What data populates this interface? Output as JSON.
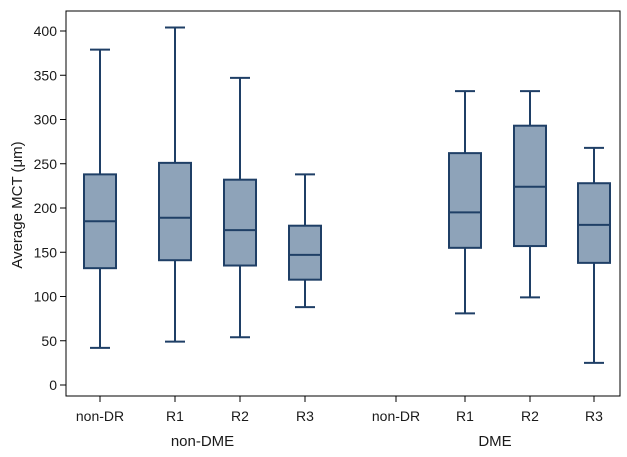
{
  "chart_data": {
    "type": "box",
    "ylabel": "Average MCT (μm)",
    "ylim": [
      0,
      400
    ],
    "yticks": [
      0,
      50,
      100,
      150,
      200,
      250,
      300,
      350,
      400
    ],
    "grid": false,
    "groups": [
      {
        "name": "non-DME",
        "categories": [
          "non-DR",
          "R1",
          "R2",
          "R3"
        ],
        "boxes": [
          {
            "min": 42,
            "q1": 132,
            "median": 185,
            "q3": 238,
            "max": 379
          },
          {
            "min": 49,
            "q1": 141,
            "median": 189,
            "q3": 251,
            "max": 404
          },
          {
            "min": 54,
            "q1": 135,
            "median": 175,
            "q3": 232,
            "max": 347
          },
          {
            "min": 88,
            "q1": 119,
            "median": 147,
            "q3": 180,
            "max": 238
          }
        ]
      },
      {
        "name": "DME",
        "categories": [
          "non-DR",
          "R1",
          "R2",
          "R3"
        ],
        "boxes": [
          null,
          {
            "min": 81,
            "q1": 155,
            "median": 195,
            "q3": 262,
            "max": 332
          },
          {
            "min": 99,
            "q1": 157,
            "median": 224,
            "q3": 293,
            "max": 332
          },
          {
            "min": 25,
            "q1": 138,
            "median": 181,
            "q3": 228,
            "max": 268
          }
        ]
      }
    ],
    "colors": {
      "box_fill": "#8ea3b9",
      "box_stroke": "#1f3f66",
      "axis": "#000000"
    }
  }
}
